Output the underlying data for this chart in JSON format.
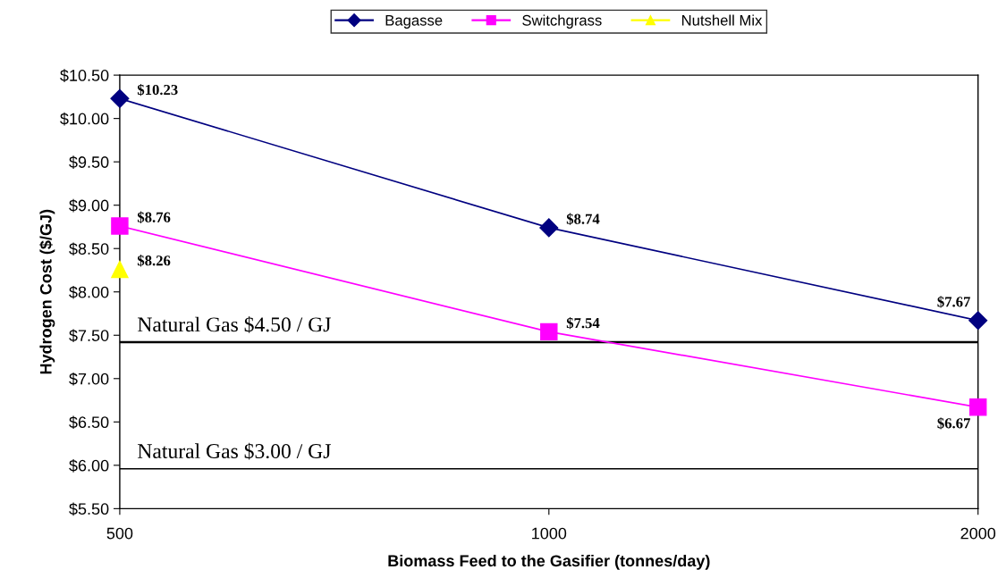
{
  "chart_data": {
    "type": "line",
    "xlabel": "Biomass Feed to the Gasifier (tonnes/day)",
    "ylabel": "Hydrogen Cost ($/GJ)",
    "categories": [
      "500",
      "1000",
      "2000"
    ],
    "series": [
      {
        "name": "Bagasse",
        "color": "#000080",
        "marker": "diamond",
        "values": [
          10.23,
          8.74,
          7.67
        ],
        "value_labels": [
          "$10.23",
          "$8.74",
          "$7.67"
        ]
      },
      {
        "name": "Switchgrass",
        "color": "#ff00ff",
        "marker": "square",
        "values": [
          8.76,
          7.54,
          6.67
        ],
        "value_labels": [
          "$8.76",
          "$7.54",
          "$6.67"
        ]
      },
      {
        "name": "Nutshell Mix",
        "color": "#ffff00",
        "marker": "triangle",
        "values": [
          8.26,
          null,
          null
        ],
        "value_labels": [
          "$8.26",
          null,
          null
        ]
      }
    ],
    "ylim": [
      5.5,
      10.5
    ],
    "yticks": [
      {
        "value": 5.5,
        "label": "$5.50"
      },
      {
        "value": 6.0,
        "label": "$6.00"
      },
      {
        "value": 6.5,
        "label": "$6.50"
      },
      {
        "value": 7.0,
        "label": "$7.00"
      },
      {
        "value": 7.5,
        "label": "$7.50"
      },
      {
        "value": 8.0,
        "label": "$8.00"
      },
      {
        "value": 8.5,
        "label": "$8.50"
      },
      {
        "value": 9.0,
        "label": "$9.00"
      },
      {
        "value": 9.5,
        "label": "$9.50"
      },
      {
        "value": 10.0,
        "label": "$10.00"
      },
      {
        "value": 10.5,
        "label": "$10.50"
      }
    ],
    "ref_lines": [
      {
        "axis": "y",
        "value": 7.42,
        "label": "Natural Gas $4.50 / GJ",
        "color": "#000000"
      },
      {
        "axis": "y",
        "value": 5.96,
        "label": "Natural Gas $3.00 / GJ",
        "color": "#000000"
      }
    ],
    "legend": "top",
    "grid": false
  }
}
